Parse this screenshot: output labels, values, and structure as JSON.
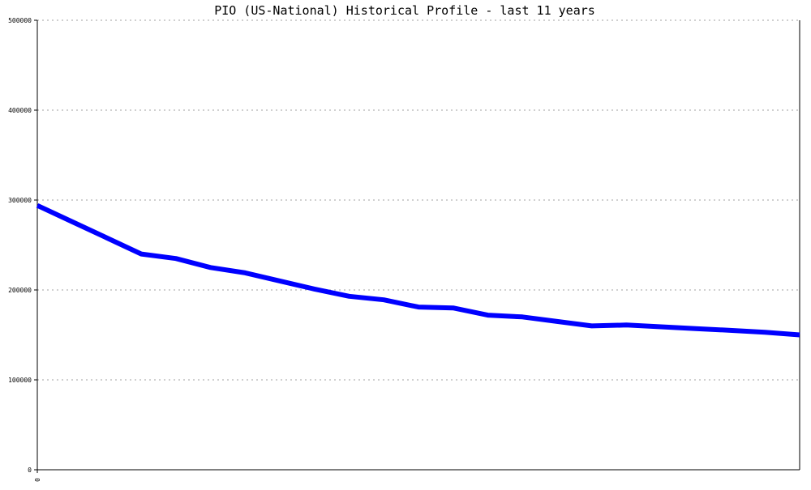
{
  "chart_data": {
    "type": "line",
    "title": "PIO (US-National) Historical Profile - last 11 years",
    "xlabel": "",
    "ylabel": "",
    "x_tick_labels": [
      "0"
    ],
    "y_tick_labels": [
      "0",
      "100000",
      "200000",
      "300000",
      "400000",
      "500000"
    ],
    "ylim": [
      0,
      500000
    ],
    "grid": true,
    "series": [
      {
        "color": "#0000ff",
        "x": [
          0,
          1,
          2,
          3,
          4,
          5,
          6,
          7,
          8,
          9,
          10,
          11,
          12,
          13,
          14,
          15,
          16,
          17,
          18,
          19,
          20,
          21,
          22
        ],
        "values": [
          294000,
          276000,
          258000,
          240000,
          235000,
          225000,
          219000,
          210000,
          201000,
          193000,
          189000,
          181000,
          180000,
          172000,
          170000,
          165000,
          160000,
          161000,
          159000,
          157000,
          155000,
          153000,
          150000
        ]
      }
    ]
  }
}
